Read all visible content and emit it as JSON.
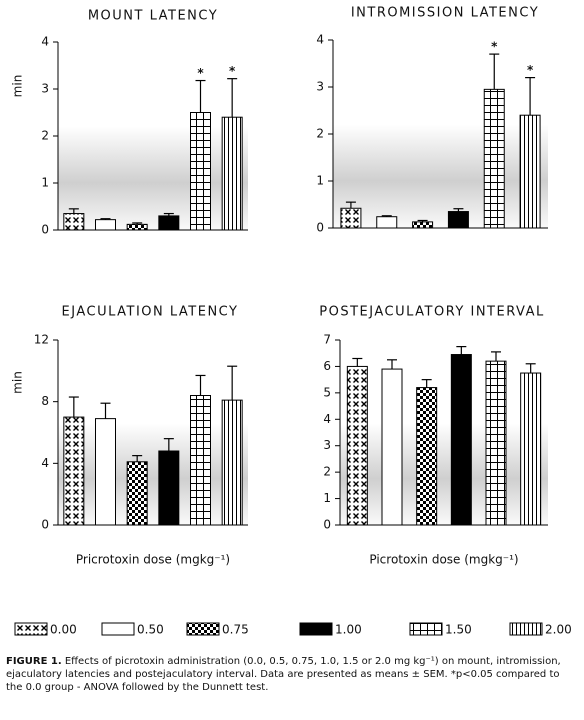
{
  "chart_data": [
    {
      "type": "bar",
      "title": "MOUNT LATENCY",
      "ylabel": "min",
      "values": [
        0.35,
        0.22,
        0.12,
        0.3,
        2.5,
        2.4
      ],
      "errors": [
        0.1,
        0.02,
        0.03,
        0.05,
        0.68,
        0.82
      ],
      "significant": [
        false,
        false,
        false,
        false,
        true,
        true
      ],
      "marker": "*",
      "ylim": [
        0,
        4
      ],
      "yticks": [
        0,
        1,
        2,
        3,
        4
      ]
    },
    {
      "type": "bar",
      "title": "INTROMISSION LATENCY",
      "values": [
        0.42,
        0.24,
        0.13,
        0.35,
        2.95,
        2.4
      ],
      "errors": [
        0.13,
        0.02,
        0.03,
        0.06,
        0.75,
        0.8
      ],
      "significant": [
        false,
        false,
        false,
        false,
        true,
        true
      ],
      "marker": "*",
      "ylim": [
        0,
        4
      ],
      "yticks": [
        0,
        1,
        2,
        3,
        4
      ]
    },
    {
      "type": "bar",
      "title": "EJACULATION LATENCY",
      "ylabel": "min",
      "xlabel": "Pricrotoxin dose (mgkg⁻¹)",
      "values": [
        7.0,
        6.9,
        4.1,
        4.8,
        8.4,
        8.1
      ],
      "errors": [
        1.3,
        1.0,
        0.4,
        0.8,
        1.3,
        2.2
      ],
      "ylim": [
        0,
        12
      ],
      "yticks": [
        0,
        4,
        8,
        12
      ]
    },
    {
      "type": "bar",
      "title": "POSTEJACULATORY INTERVAL",
      "xlabel": "Picrotoxin dose (mgkg⁻¹)",
      "values": [
        6.0,
        5.9,
        5.2,
        6.45,
        6.2,
        5.75
      ],
      "errors": [
        0.3,
        0.35,
        0.3,
        0.3,
        0.35,
        0.35
      ],
      "ylim": [
        0,
        7
      ],
      "yticks": [
        0,
        1,
        2,
        3,
        4,
        5,
        6,
        7
      ]
    }
  ],
  "legend": [
    {
      "name": "0.00",
      "pattern": "cross"
    },
    {
      "name": "0.50",
      "pattern": "open"
    },
    {
      "name": "0.75",
      "pattern": "check"
    },
    {
      "name": "1.00",
      "pattern": "solid"
    },
    {
      "name": "1.50",
      "pattern": "grid"
    },
    {
      "name": "2.00",
      "pattern": "vlines"
    }
  ],
  "caption": {
    "label": "FIGURE 1.",
    "text": "Effects of picrotoxin administration (0.0, 0.5, 0.75, 1.0, 1.5 or 2.0 mg kg⁻¹) on mount, intromission, ejaculatory latencies and postejaculatory interval. Data are presented as means ± SEM. *p<0.05 compared to the 0.0 group - ANOVA followed by the Dunnett test."
  }
}
